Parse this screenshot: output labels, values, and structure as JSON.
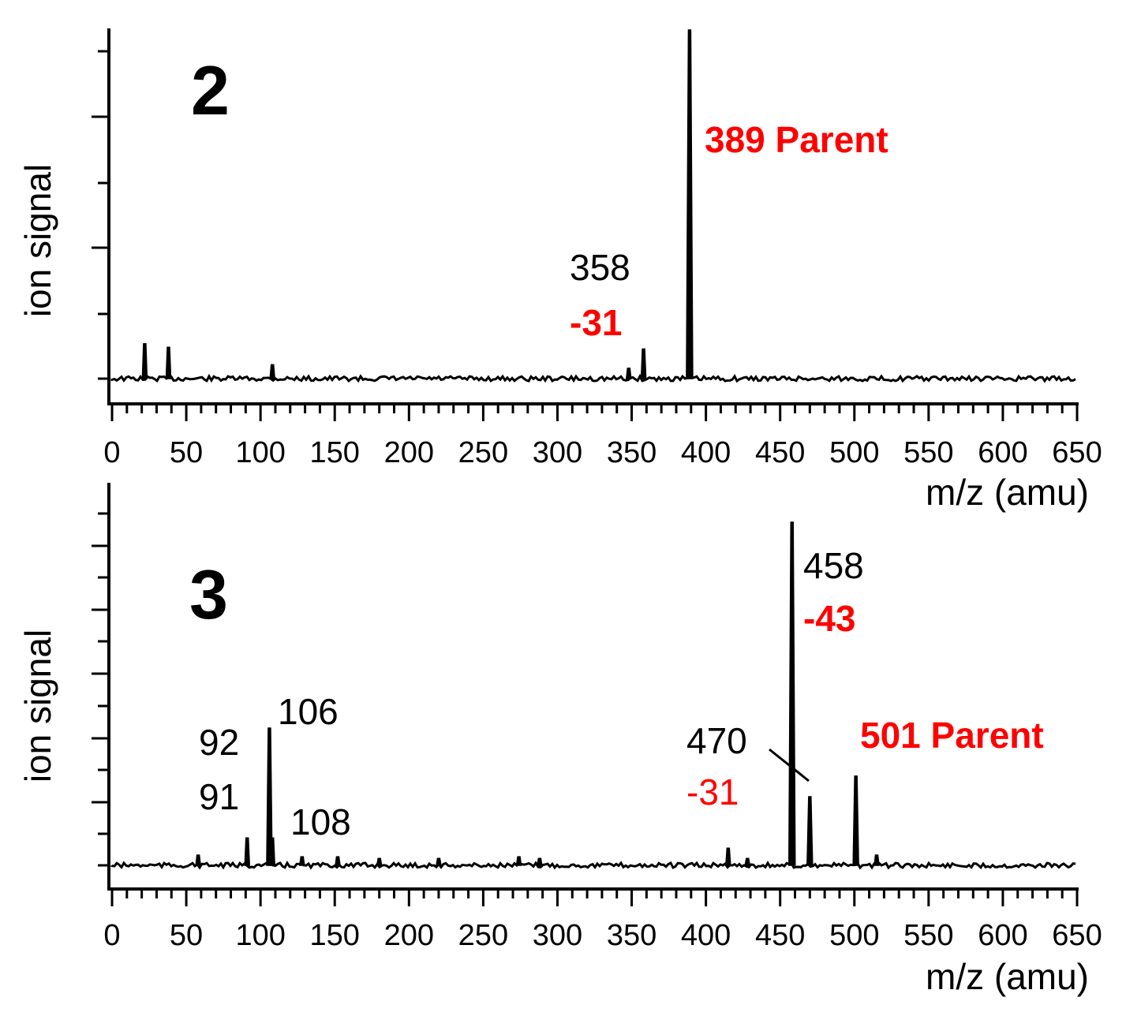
{
  "chart_data": [
    {
      "type": "line",
      "panel_label": "2",
      "xlabel": "m/z (amu)",
      "ylabel": "ion signal",
      "xlim": [
        0,
        650
      ],
      "x_tick_labels": [
        "0",
        "50",
        "100",
        "150",
        "200",
        "250",
        "300",
        "350",
        "400",
        "450",
        "500",
        "550",
        "600",
        "650"
      ],
      "series": [
        {
          "x": [
            0,
            22,
            38,
            108,
            348,
            358,
            389,
            650
          ],
          "y": [
            0.0,
            0.1,
            0.09,
            0.04,
            0.03,
            0.085,
            1.0,
            0.0
          ]
        }
      ],
      "annotations": [
        {
          "text": "389 Parent",
          "color": "#ff0000",
          "bold": true,
          "x": 389
        },
        {
          "text": "358",
          "color": "#000000",
          "bold": false,
          "x": 358
        },
        {
          "text": "-31",
          "color": "#ff0000",
          "bold": true,
          "x": 358
        }
      ]
    },
    {
      "type": "line",
      "panel_label": "3",
      "xlabel": "m/z (amu)",
      "ylabel": "ion signal",
      "xlim": [
        0,
        650
      ],
      "x_tick_labels": [
        "0",
        "50",
        "100",
        "150",
        "200",
        "250",
        "300",
        "350",
        "400",
        "450",
        "500",
        "550",
        "600",
        "650"
      ],
      "series": [
        {
          "x": [
            0,
            58,
            91,
            106,
            108,
            128,
            152,
            180,
            220,
            274,
            288,
            415,
            428,
            458,
            470,
            501,
            515,
            650
          ],
          "y": [
            0.0,
            0.03,
            0.08,
            0.4,
            0.08,
            0.025,
            0.025,
            0.02,
            0.02,
            0.025,
            0.02,
            0.05,
            0.02,
            1.0,
            0.2,
            0.26,
            0.03,
            0.0
          ]
        }
      ],
      "annotations": [
        {
          "text": "106",
          "color": "#000000",
          "bold": false,
          "x": 106
        },
        {
          "text": "92",
          "color": "#000000",
          "bold": false,
          "x": 92
        },
        {
          "text": "91",
          "color": "#000000",
          "bold": false,
          "x": 91
        },
        {
          "text": "108",
          "color": "#000000",
          "bold": false,
          "x": 108
        },
        {
          "text": "458",
          "color": "#000000",
          "bold": false,
          "x": 458
        },
        {
          "text": "-43",
          "color": "#ff0000",
          "bold": true,
          "x": 458
        },
        {
          "text": "470",
          "color": "#000000",
          "bold": false,
          "x": 470
        },
        {
          "text": "-31",
          "color": "#ff0000",
          "bold": false,
          "x": 470
        },
        {
          "text": "501 Parent",
          "color": "#ff0000",
          "bold": true,
          "x": 501
        }
      ]
    }
  ]
}
